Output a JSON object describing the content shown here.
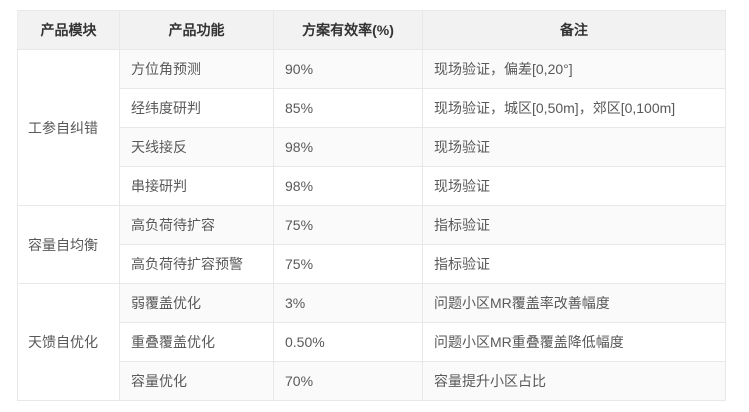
{
  "table": {
    "title": "product-capability-effectiveness-table",
    "headers": {
      "module": "产品模块",
      "function": "产品功能",
      "rate": "方案有效率(%)",
      "remark": "备注"
    },
    "groups": [
      {
        "module": "工参自纠错",
        "rows": [
          {
            "function": "方位角预测",
            "rate": "90%",
            "remark": "现场验证，偏差[0,20°]"
          },
          {
            "function": "经纬度研判",
            "rate": "85%",
            "remark": "现场验证，城区[0,50m]，郊区[0,100m]"
          },
          {
            "function": "天线接反",
            "rate": "98%",
            "remark": "现场验证"
          },
          {
            "function": "串接研判",
            "rate": "98%",
            "remark": "现场验证"
          }
        ]
      },
      {
        "module": "容量自均衡",
        "rows": [
          {
            "function": "高负荷待扩容",
            "rate": "75%",
            "remark": "指标验证"
          },
          {
            "function": "高负荷待扩容预警",
            "rate": "75%",
            "remark": "指标验证"
          }
        ]
      },
      {
        "module": "天馈自优化",
        "rows": [
          {
            "function": "弱覆盖优化",
            "rate": "3%",
            "remark": "问题小区MR覆盖率改善幅度"
          },
          {
            "function": "重叠覆盖优化",
            "rate": "0.50%",
            "remark": "问题小区MR重叠覆盖降低幅度"
          },
          {
            "function": "容量优化",
            "rate": "70%",
            "remark": "容量提升小区占比"
          }
        ]
      }
    ],
    "colors": {
      "header_bg": "#f2f2f2",
      "border": "#e8e8e8",
      "stripe_bg": "#fafafa",
      "header_text": "#333333",
      "body_text": "#595959"
    }
  }
}
